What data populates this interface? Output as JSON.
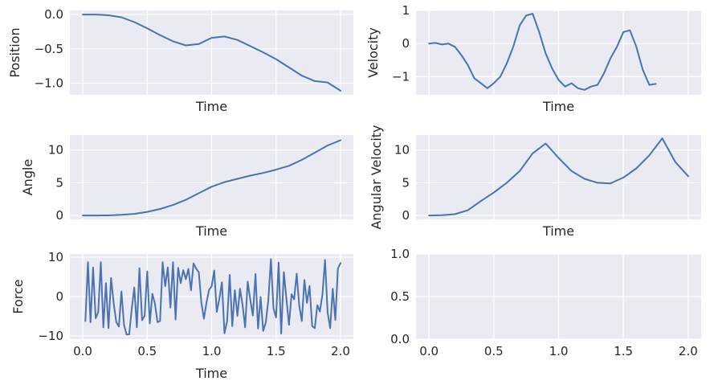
{
  "chart_data": [
    {
      "type": "line",
      "panel": "top-left",
      "xlabel": "Time",
      "ylabel": "Position",
      "xlim": [
        -0.1,
        2.1
      ],
      "ylim": [
        -1.17,
        0.06
      ],
      "xticks": [],
      "xtick_labels": [],
      "yticks": [
        0.0,
        -0.5,
        -1.0
      ],
      "ytick_labels": [
        "0.0",
        "−0.5",
        "−1.0"
      ],
      "grid": true,
      "x": [
        0.0,
        0.1,
        0.2,
        0.3,
        0.4,
        0.5,
        0.6,
        0.7,
        0.8,
        0.9,
        1.0,
        1.1,
        1.2,
        1.3,
        1.4,
        1.5,
        1.6,
        1.7,
        1.8,
        1.9,
        2.0
      ],
      "y": [
        0.0,
        0.0,
        -0.01,
        -0.04,
        -0.11,
        -0.2,
        -0.3,
        -0.39,
        -0.45,
        -0.43,
        -0.34,
        -0.32,
        -0.37,
        -0.46,
        -0.55,
        -0.65,
        -0.77,
        -0.89,
        -0.97,
        -0.99,
        -1.11
      ]
    },
    {
      "type": "line",
      "panel": "top-right",
      "xlabel": "Time",
      "ylabel": "Velocity",
      "xlim": [
        -0.1,
        2.1
      ],
      "ylim": [
        -1.55,
        1.0
      ],
      "xticks": [],
      "xtick_labels": [],
      "yticks": [
        1,
        0,
        -1
      ],
      "ytick_labels": [
        "1",
        "0",
        "−1"
      ],
      "grid": true,
      "x": [
        0.0,
        0.05,
        0.1,
        0.15,
        0.2,
        0.25,
        0.3,
        0.35,
        0.4,
        0.45,
        0.5,
        0.55,
        0.6,
        0.65,
        0.7,
        0.75,
        0.8,
        0.85,
        0.9,
        0.95,
        1.0,
        1.05,
        1.1,
        1.15,
        1.2,
        1.25,
        1.3,
        1.35,
        1.4,
        1.45,
        1.5,
        1.55,
        1.6,
        1.65,
        1.7,
        1.75,
        1.8,
        1.85,
        1.9,
        1.95,
        2.0
      ],
      "y": [
        0.0,
        0.02,
        -0.03,
        0.0,
        -0.1,
        -0.35,
        -0.65,
        -1.05,
        -1.2,
        -1.35,
        -1.2,
        -1.0,
        -0.6,
        -0.1,
        0.55,
        0.85,
        0.9,
        0.35,
        -0.3,
        -0.75,
        -1.1,
        -1.3,
        -1.2,
        -1.35,
        -1.4,
        -1.3,
        -1.25,
        -0.9,
        -0.45,
        -0.1,
        0.35,
        0.4,
        -0.1,
        -0.8,
        -1.25,
        -1.22,
        null,
        null,
        null,
        null,
        null
      ]
    },
    {
      "type": "line",
      "panel": "middle-left",
      "xlabel": "Time",
      "ylabel": "Angle",
      "xlim": [
        -0.1,
        2.1
      ],
      "ylim": [
        -0.6,
        12.3
      ],
      "xticks": [],
      "xtick_labels": [],
      "yticks": [
        0,
        5,
        10
      ],
      "ytick_labels": [
        "0",
        "5",
        "10"
      ],
      "grid": true,
      "x": [
        0.0,
        0.1,
        0.2,
        0.3,
        0.4,
        0.5,
        0.6,
        0.7,
        0.8,
        0.9,
        1.0,
        1.1,
        1.2,
        1.3,
        1.4,
        1.5,
        1.6,
        1.7,
        1.8,
        1.9,
        2.0
      ],
      "y": [
        0.0,
        0.0,
        0.02,
        0.1,
        0.25,
        0.55,
        1.0,
        1.6,
        2.4,
        3.4,
        4.4,
        5.1,
        5.6,
        6.1,
        6.5,
        7.0,
        7.6,
        8.5,
        9.6,
        10.7,
        11.5
      ]
    },
    {
      "type": "line",
      "panel": "middle-right",
      "xlabel": "Time",
      "ylabel": "Angular Velocity",
      "xlim": [
        -0.1,
        2.1
      ],
      "ylim": [
        -0.6,
        12.3
      ],
      "xticks": [],
      "xtick_labels": [],
      "yticks": [
        0,
        5,
        10
      ],
      "ytick_labels": [
        "0",
        "5",
        "10"
      ],
      "grid": true,
      "x": [
        0.0,
        0.1,
        0.2,
        0.3,
        0.4,
        0.5,
        0.6,
        0.7,
        0.8,
        0.9,
        1.0,
        1.1,
        1.2,
        1.3,
        1.4,
        1.5,
        1.6,
        1.7,
        1.8,
        1.9,
        2.0
      ],
      "y": [
        0.0,
        0.05,
        0.2,
        0.8,
        2.2,
        3.5,
        5.0,
        6.8,
        9.5,
        11.0,
        8.8,
        6.8,
        5.6,
        5.0,
        4.9,
        5.8,
        7.2,
        9.2,
        11.8,
        8.2,
        6.0
      ]
    },
    {
      "type": "line",
      "panel": "bottom-left",
      "xlabel": "Time",
      "ylabel": "Force",
      "xlim": [
        -0.1,
        2.1
      ],
      "ylim": [
        -10.8,
        10.8
      ],
      "xticks": [
        0.0,
        0.5,
        1.0,
        1.5,
        2.0
      ],
      "xtick_labels": [
        "0.0",
        "0.5",
        "1.0",
        "1.5",
        "2.0"
      ],
      "yticks": [
        10,
        0,
        -10
      ],
      "ytick_labels": [
        "10",
        "0",
        "−10"
      ],
      "grid": true,
      "x": [
        0.02,
        0.04,
        0.06,
        0.08,
        0.1,
        0.12,
        0.14,
        0.16,
        0.18,
        0.2,
        0.22,
        0.24,
        0.26,
        0.28,
        0.3,
        0.32,
        0.34,
        0.36,
        0.38,
        0.4,
        0.42,
        0.44,
        0.46,
        0.48,
        0.5,
        0.52,
        0.54,
        0.56,
        0.58,
        0.6,
        0.62,
        0.64,
        0.66,
        0.68,
        0.7,
        0.72,
        0.74,
        0.76,
        0.78,
        0.8,
        0.82,
        0.84,
        0.86,
        0.88,
        0.9,
        0.92,
        0.94,
        0.96,
        0.98,
        1.0,
        1.02,
        1.04,
        1.06,
        1.08,
        1.1,
        1.12,
        1.14,
        1.16,
        1.18,
        1.2,
        1.22,
        1.24,
        1.26,
        1.28,
        1.3,
        1.32,
        1.34,
        1.36,
        1.38,
        1.4,
        1.42,
        1.44,
        1.46,
        1.48,
        1.5,
        1.52,
        1.54,
        1.56,
        1.58,
        1.6,
        1.62,
        1.64,
        1.66,
        1.68,
        1.7,
        1.72,
        1.74,
        1.76,
        1.78,
        1.8,
        1.82,
        1.84,
        1.86,
        1.88,
        1.9,
        1.92,
        1.94,
        1.96,
        1.98,
        2.0
      ],
      "y": [
        -6.2,
        8.7,
        -6.5,
        7.4,
        -5.5,
        -4.0,
        8.7,
        -7.8,
        3.4,
        -8.0,
        4.7,
        -1.8,
        -6.5,
        -7.6,
        1.3,
        -7.2,
        -9.6,
        -9.6,
        -3.2,
        2.3,
        -7.8,
        7.2,
        -6.0,
        -4.9,
        6.4,
        -6.8,
        0.7,
        -1.8,
        -6.5,
        -6.2,
        8.7,
        2.6,
        7.4,
        -2.8,
        8.7,
        -5.8,
        7.3,
        3.4,
        6.7,
        4.4,
        7.0,
        1.6,
        8.4,
        7.1,
        6.2,
        -1.5,
        -5.6,
        -1.5,
        1.7,
        2.6,
        6.6,
        -3.9,
        -0.6,
        3.6,
        -9.3,
        -6.2,
        5.5,
        -7.5,
        1.6,
        -4.9,
        2.0,
        -2.1,
        -7.8,
        3.8,
        -0.8,
        -4.8,
        5.7,
        -8.1,
        -0.1,
        -8.7,
        -6.6,
        -0.9,
        9.5,
        -3.0,
        -5.3,
        8.6,
        -9.4,
        6.2,
        -0.5,
        -7.2,
        0.6,
        -0.7,
        5.8,
        -2.3,
        -6.2,
        4.2,
        -1.6,
        2.7,
        -7.5,
        -8.0,
        -2.2,
        -3.8,
        0.6,
        9.3,
        -4.0,
        -8.0,
        2.0,
        -5.9,
        7.1,
        8.5
      ]
    },
    {
      "type": "line",
      "panel": "bottom-right",
      "xlabel": "",
      "ylabel": "",
      "xlim": [
        -0.1,
        2.1
      ],
      "ylim": [
        0.0,
        1.0
      ],
      "xticks": [
        0.0,
        0.5,
        1.0,
        1.5,
        2.0
      ],
      "xtick_labels": [
        "0.0",
        "0.5",
        "1.0",
        "1.5",
        "2.0"
      ],
      "yticks": [
        1.0,
        0.5,
        0.0
      ],
      "ytick_labels": [
        "1.0",
        "0.5",
        "0.0"
      ],
      "grid": true,
      "x": [],
      "y": []
    }
  ]
}
